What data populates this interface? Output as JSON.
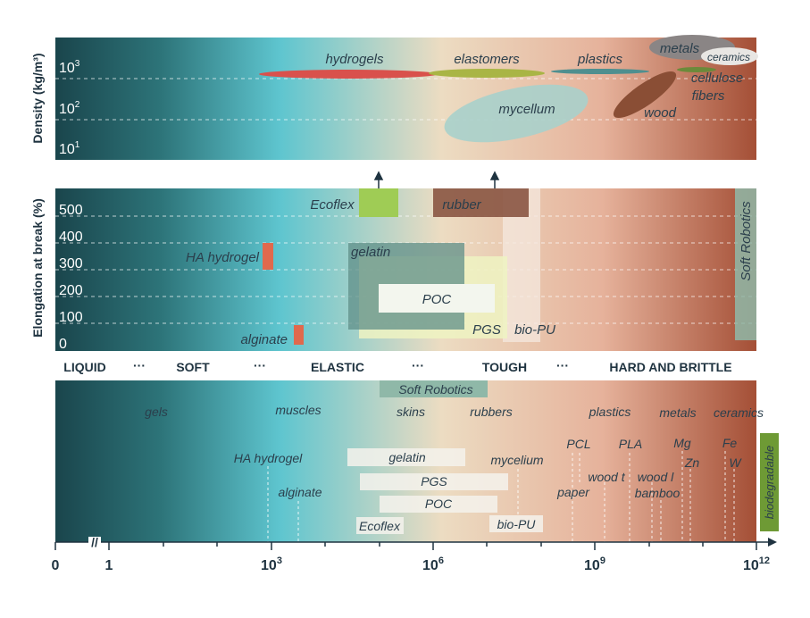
{
  "colors": {
    "gradient": [
      "#1b4a52",
      "#2f7a7f",
      "#5cc3cd",
      "#e9dcc3",
      "#e7b7a1",
      "#a8523a"
    ],
    "hydrogels": "#d9514c",
    "elastomers": "#a9b545",
    "plastics": "#4f8f8f",
    "metals": "#8a8585",
    "ceramics": "#e8e6e3",
    "fibers": "#6b8a3a",
    "wood": "#8a4e35",
    "mycellum": "#a8d0cb",
    "ecoflex": "#9fcc55",
    "rubber": "#8a5543",
    "gelatin": "#5f8f88",
    "pgs": "#edf2c0",
    "poc": "#f3f6ee",
    "soft_robotics": "#8fb8a8",
    "ha_hydrogel": "#e0694d",
    "biodegradable": "#6e9a35",
    "axis": "#1f3340"
  },
  "density_panel": {
    "ylabel": "Density (kg/m³)",
    "ticks": [
      {
        "base": "10",
        "exp": "3"
      },
      {
        "base": "10",
        "exp": "2"
      },
      {
        "base": "10",
        "exp": "1"
      }
    ],
    "labels": {
      "hydrogels": "hydrogels",
      "elastomers": "elastomers",
      "plastics": "plastics",
      "metals": "metals",
      "ceramics": "ceramics",
      "cellulose": "cellulose",
      "fibers": "fibers",
      "mycellum": "mycellum",
      "wood": "wood"
    }
  },
  "elongation_panel": {
    "ylabel": "Elongation at break (%)",
    "ticks": [
      "500",
      "400",
      "300",
      "200",
      "100",
      "0"
    ],
    "labels": {
      "ecoflex": "Ecoflex",
      "rubber": "rubber",
      "ha_hydrogel": "HA hydrogel",
      "gelatin": "gelatin",
      "poc": "POC",
      "pgs": "PGS",
      "bio_pu": "bio-PU",
      "alginate": "alginate",
      "soft_robotics": "Soft Robotics"
    }
  },
  "categories": [
    "LIQUID",
    "SOFT",
    "ELASTIC",
    "TOUGH",
    "HARD AND BRITTLE"
  ],
  "ellipsis": "···",
  "bottom_panel": {
    "soft_robotics": "Soft Robotics",
    "classes": [
      "gels",
      "muscles",
      "skins",
      "rubbers",
      "plastics",
      "metals",
      "ceramics"
    ],
    "materials": {
      "ha_hydrogel": "HA hydrogel",
      "alginate": "alginate",
      "gelatin": "gelatin",
      "pgs": "PGS",
      "poc": "POC",
      "ecoflex": "Ecoflex",
      "mycelium": "mycelium",
      "bio_pu": "bio-PU",
      "pcl": "PCL",
      "paper": "paper",
      "wood_t": "wood t",
      "pla": "PLA",
      "wood_l": "wood l",
      "bamboo": "bamboo",
      "mg": "Mg",
      "zn": "Zn",
      "fe": "Fe",
      "w": "W"
    },
    "biodegradable": "biodegradable"
  },
  "x_axis": {
    "ticks": [
      {
        "base": "0",
        "exp": ""
      },
      {
        "base": "1",
        "exp": ""
      },
      {
        "base": "10",
        "exp": "3"
      },
      {
        "base": "10",
        "exp": "6"
      },
      {
        "base": "10",
        "exp": "9"
      },
      {
        "base": "10",
        "exp": "12"
      }
    ],
    "break_mark": "//"
  }
}
